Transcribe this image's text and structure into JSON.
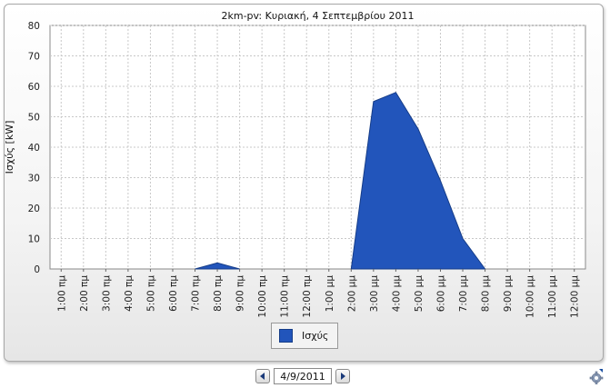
{
  "chart_data": {
    "type": "area",
    "title": "2km-pv: Κυριακή, 4 Σεπτεμβρίου 2011",
    "ylabel": "Ισχύς [kW]",
    "xlabel": "",
    "ylim": [
      0,
      80
    ],
    "yticks": [
      "0",
      "10",
      "20",
      "30",
      "40",
      "50",
      "60",
      "70",
      "80"
    ],
    "categories": [
      "1:00 πμ",
      "2:00 πμ",
      "3:00 πμ",
      "4:00 πμ",
      "5:00 πμ",
      "6:00 πμ",
      "7:00 πμ",
      "8:00 πμ",
      "9:00 πμ",
      "10:00 πμ",
      "11:00 πμ",
      "12:00 πμ",
      "1:00 μμ",
      "2:00 μμ",
      "3:00 μμ",
      "4:00 μμ",
      "5:00 μμ",
      "6:00 μμ",
      "7:00 μμ",
      "8:00 μμ",
      "9:00 μμ",
      "10:00 μμ",
      "11:00 μμ",
      "12:00 μμ"
    ],
    "series": [
      {
        "name": "Ισχύς",
        "color": "#2255bb",
        "values": [
          0,
          0,
          0,
          0,
          0,
          0,
          0,
          2,
          0,
          0,
          0,
          0,
          0,
          0,
          55,
          58,
          46,
          29,
          10,
          0,
          0,
          0,
          0,
          0
        ]
      }
    ],
    "grid": true,
    "legend": "bottom-center"
  },
  "date_nav": {
    "date_value": "4/9/2011",
    "prev_icon": "triangle-left-icon",
    "next_icon": "triangle-right-icon"
  },
  "settings": {
    "icon": "gear-icon"
  }
}
